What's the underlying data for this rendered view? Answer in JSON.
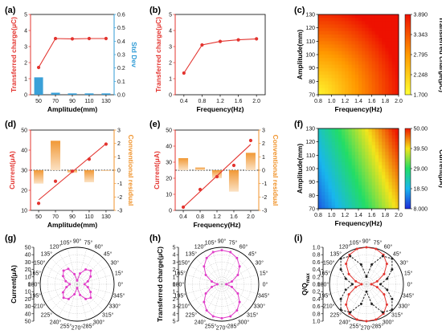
{
  "colors": {
    "red": "#e3342f",
    "blue": "#2f9bd6",
    "orange": "#f0932b",
    "magenta": "#e03ec8",
    "dark": "#333333"
  },
  "panels": {
    "a": {
      "label": "(a)"
    },
    "b": {
      "label": "(b)"
    },
    "c": {
      "label": "(c)"
    },
    "d": {
      "label": "(d)"
    },
    "e": {
      "label": "(e)"
    },
    "f": {
      "label": "(f)"
    },
    "g": {
      "label": "(g)"
    },
    "h": {
      "label": "(h)"
    },
    "i": {
      "label": "(i)"
    }
  },
  "chart_data": [
    {
      "id": "a",
      "type": "line+bar",
      "x": [
        50,
        70,
        90,
        110,
        130
      ],
      "x_ticks": [
        "50",
        "70",
        "90",
        "110",
        "130"
      ],
      "xlabel": "Amplitude(mm)",
      "ylabel": "Transferred charge(μC)",
      "ylim": [
        0,
        5
      ],
      "y_ticks": [
        "0",
        "1",
        "2",
        "3",
        "4",
        "5"
      ],
      "y": [
        1.7,
        3.5,
        3.48,
        3.5,
        3.5
      ],
      "y2label": "Std Dev",
      "y2lim": [
        0,
        0.6
      ],
      "y2_ticks": [
        "0.0",
        "0.1",
        "0.2",
        "0.3",
        "0.4",
        "0.5",
        "0.6"
      ],
      "y2": [
        0.13,
        0.015,
        0.01,
        0.01,
        0.01
      ]
    },
    {
      "id": "b",
      "type": "line",
      "x": [
        0.4,
        0.8,
        1.2,
        1.6,
        2.0
      ],
      "x_ticks": [
        "0.4",
        "0.8",
        "1.2",
        "1.6",
        "2.0"
      ],
      "xlabel": "Frequency(Hz)",
      "ylabel": "Transferred charge(μC)",
      "ylim": [
        0,
        5
      ],
      "y_ticks": [
        "0",
        "1",
        "2",
        "3",
        "4",
        "5"
      ],
      "y": [
        1.35,
        3.1,
        3.32,
        3.42,
        3.48
      ]
    },
    {
      "id": "c",
      "type": "heatmap",
      "xlabel": "Frequency(Hz)",
      "xlim": [
        0.8,
        2.0
      ],
      "x_ticks": [
        "0.8",
        "1.0",
        "1.2",
        "1.4",
        "1.6",
        "1.8",
        "2.0"
      ],
      "ylabel": "Amplitude(mm)",
      "ylim": [
        70,
        130
      ],
      "y_ticks": [
        "70",
        "80",
        "90",
        "100",
        "110",
        "120",
        "130"
      ],
      "colorbar_label": "Transferred charge(μC)",
      "colorbar_ticks": [
        "3.890",
        "3.343",
        "2.795",
        "2.248",
        "1.700"
      ],
      "range": [
        1.7,
        3.89
      ]
    },
    {
      "id": "d",
      "type": "line+bar",
      "x": [
        50,
        70,
        90,
        110,
        130
      ],
      "x_ticks": [
        "50",
        "70",
        "90",
        "110",
        "130"
      ],
      "xlabel": "Amplitude(mm)",
      "ylabel": "Current(μA)",
      "ylim": [
        10,
        50
      ],
      "y_ticks": [
        "10",
        "20",
        "30",
        "40",
        "50"
      ],
      "y": [
        13.5,
        24.5,
        29.5,
        35.5,
        43
      ],
      "y2label": "Conventional residual",
      "y2lim": [
        -3,
        3
      ],
      "y2_ticks": [
        "-3",
        "-2",
        "-1",
        "0",
        "1",
        "2",
        "3"
      ],
      "y2": [
        -1.0,
        2.2,
        -0.2,
        -0.9,
        0.0
      ]
    },
    {
      "id": "e",
      "type": "line+bar",
      "x": [
        0.4,
        0.8,
        1.2,
        1.6,
        2.0
      ],
      "x_ticks": [
        "0.4",
        "0.8",
        "1.2",
        "1.6",
        "2.0"
      ],
      "xlabel": "Frequency(Hz)",
      "ylabel": "Current(μA)",
      "ylim": [
        0,
        50
      ],
      "y_ticks": [
        "0",
        "10",
        "20",
        "30",
        "40",
        "50"
      ],
      "y": [
        2,
        13,
        21,
        28,
        43.5
      ],
      "y2label": "Conventional residual",
      "y2lim": [
        -3,
        3
      ],
      "y2_ticks": [
        "-3",
        "-2",
        "-1",
        "0",
        "1",
        "2",
        "3"
      ],
      "y2": [
        0.9,
        0.2,
        -0.6,
        -1.6,
        1.3
      ]
    },
    {
      "id": "f",
      "type": "heatmap",
      "xlabel": "Frequency(Hz)",
      "xlim": [
        0.8,
        2.0
      ],
      "x_ticks": [
        "0.8",
        "1.0",
        "1.2",
        "1.4",
        "1.6",
        "1.8",
        "2.0"
      ],
      "ylabel": "Amplitude(mm)",
      "ylim": [
        70,
        130
      ],
      "y_ticks": [
        "70",
        "80",
        "90",
        "100",
        "110",
        "120",
        "130"
      ],
      "colorbar_label": "Current(μA)",
      "colorbar_ticks": [
        "50.00",
        "39.50",
        "29.00",
        "18.50",
        "8.000"
      ],
      "range": [
        8,
        50
      ]
    },
    {
      "id": "g",
      "type": "polar",
      "ylabel": "Current(μA)",
      "rlim": [
        0,
        50
      ],
      "r_ticks": [
        "0",
        "10",
        "20",
        "30",
        "40",
        "50"
      ],
      "angle_labels": [
        "0°",
        "15°",
        "30°",
        "45°",
        "60°",
        "75°",
        "90°",
        "105°",
        "120°",
        "135°",
        "150°",
        "165°",
        "180°",
        "195°",
        "210°",
        "225°",
        "240°",
        "255°",
        "270°",
        "285°",
        "300°",
        "315°",
        "330°",
        "345°"
      ],
      "series": [
        {
          "name": "",
          "angles": [
            0,
            15,
            30,
            45,
            60,
            75,
            90,
            105,
            120,
            135,
            150,
            165,
            180,
            195,
            210,
            225,
            240,
            255,
            270,
            285,
            300,
            315,
            330,
            345
          ],
          "r": [
            10,
            15,
            21,
            26,
            23,
            15,
            5,
            14,
            24,
            26,
            22,
            16,
            10,
            15,
            22,
            26,
            23,
            14,
            5,
            15,
            23,
            26,
            21,
            15
          ]
        }
      ]
    },
    {
      "id": "h",
      "type": "polar",
      "ylabel": "Transferred charge(μC)",
      "rlim": [
        0,
        5
      ],
      "r_ticks": [
        "0",
        "1",
        "2",
        "3",
        "4",
        "5"
      ],
      "angle_labels": [
        "0°",
        "15°",
        "30°",
        "45°",
        "60°",
        "75°",
        "90°",
        "105°",
        "120°",
        "135°",
        "150°",
        "165°",
        "180°",
        "195°",
        "210°",
        "225°",
        "240°",
        "255°",
        "270°",
        "285°",
        "300°",
        "315°",
        "330°",
        "345°"
      ],
      "series": [
        {
          "name": "",
          "angles": [
            0,
            15,
            30,
            45,
            60,
            75,
            90,
            105,
            120,
            135,
            150,
            165,
            180,
            195,
            210,
            225,
            240,
            255,
            270,
            285,
            300,
            315,
            330,
            345
          ],
          "r": [
            0.6,
            1.4,
            2.5,
            3.4,
            4.1,
            4.5,
            4.6,
            4.5,
            4.1,
            3.4,
            2.5,
            1.4,
            0.6,
            1.4,
            2.5,
            3.4,
            4.1,
            4.5,
            4.6,
            4.5,
            4.1,
            3.4,
            2.5,
            1.4
          ]
        }
      ]
    },
    {
      "id": "i",
      "type": "polar",
      "ylabel": "Q/Q",
      "ylabel_sub": "max",
      "rlim": [
        0,
        1.0
      ],
      "r_ticks": [
        "0.0",
        "0.2",
        "0.4",
        "0.6",
        "0.8",
        "1.0"
      ],
      "angle_labels": [
        "0°",
        "15°",
        "30°",
        "45°",
        "60°",
        "75°",
        "90°",
        "105°",
        "120°",
        "135°",
        "150°",
        "165°",
        "180°",
        "195°",
        "210°",
        "225°",
        "240°",
        "255°",
        "270°",
        "285°",
        "300°",
        "315°",
        "330°",
        "345°"
      ],
      "series": [
        {
          "name": "",
          "color": "#e3342f",
          "dash": false,
          "angles": [
            0,
            15,
            30,
            45,
            60,
            75,
            90,
            105,
            120,
            135,
            150,
            165,
            180,
            195,
            210,
            225,
            240,
            255,
            270,
            285,
            300,
            315,
            330,
            345
          ],
          "r": [
            0.13,
            0.3,
            0.55,
            0.78,
            0.92,
            0.99,
            1.0,
            0.99,
            0.92,
            0.78,
            0.55,
            0.3,
            0.13,
            0.3,
            0.55,
            0.78,
            0.92,
            0.99,
            1.0,
            0.99,
            0.92,
            0.78,
            0.55,
            0.3
          ]
        },
        {
          "name": "",
          "color": "#222222",
          "dash": true,
          "angles": [
            0,
            15,
            30,
            45,
            60,
            75,
            90,
            105,
            120,
            135,
            150,
            165,
            180,
            195,
            210,
            225,
            240,
            255,
            270,
            285,
            300,
            315,
            330,
            345
          ],
          "r": [
            0.38,
            0.58,
            0.8,
            0.98,
            0.88,
            0.55,
            0.2,
            0.55,
            0.88,
            0.98,
            0.8,
            0.58,
            0.38,
            0.58,
            0.8,
            0.98,
            0.88,
            0.55,
            0.2,
            0.55,
            0.88,
            0.98,
            0.8,
            0.58
          ]
        }
      ]
    }
  ]
}
